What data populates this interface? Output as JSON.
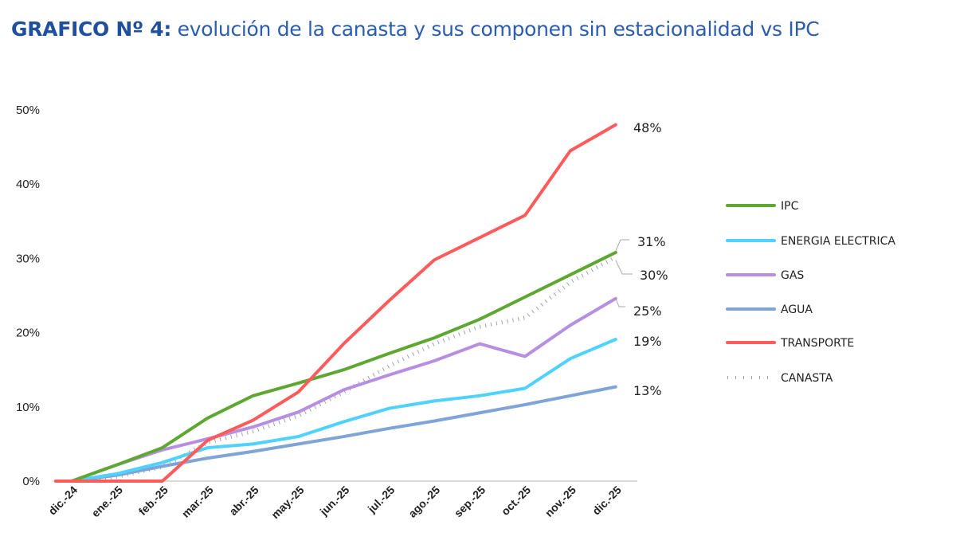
{
  "chart_data": {
    "type": "line",
    "title_bold": "GRAFICO Nº 4:",
    "title_rest": " evolución de la canasta y sus componen sin estacionalidad vs IPC",
    "xlabel": "",
    "ylabel": "",
    "ylim": [
      0,
      50
    ],
    "yticks": [
      "0%",
      "10%",
      "20%",
      "30%",
      "40%",
      "50%"
    ],
    "categories": [
      "dic.-24",
      "ene.-25",
      "feb.-25",
      "mar.-25",
      "abr.-25",
      "may.-25",
      "jun.-25",
      "jul.-25",
      "ago.-25",
      "sep.-25",
      "oct.-25",
      "nov.-25",
      "dic.-25"
    ],
    "legend_position": "right",
    "grid": false,
    "series": [
      {
        "name": "IPC",
        "color": "#5ea832",
        "style": "solid",
        "end_label": "31%",
        "values": [
          0,
          2.2,
          4.5,
          8.5,
          11.5,
          13.2,
          15.0,
          17.2,
          19.3,
          21.8,
          24.8,
          27.8,
          30.8
        ]
      },
      {
        "name": "ENERGIA ELECTRICA",
        "color": "#4fd2ff",
        "style": "solid",
        "end_label": "19%",
        "values": [
          0,
          1.0,
          2.5,
          4.5,
          5.0,
          6.0,
          8.0,
          9.8,
          10.8,
          11.5,
          12.5,
          16.5,
          19.1
        ]
      },
      {
        "name": "GAS",
        "color": "#b78fe2",
        "style": "solid",
        "end_label": "25%",
        "values": [
          0,
          2.2,
          4.2,
          5.7,
          7.3,
          9.3,
          12.3,
          14.3,
          16.2,
          18.5,
          16.8,
          21.0,
          24.6
        ]
      },
      {
        "name": "AGUA",
        "color": "#7fa4d8",
        "style": "solid",
        "end_label": "13%",
        "values": [
          0,
          0.8,
          2.0,
          3.1,
          4.0,
          5.0,
          6.0,
          7.1,
          8.1,
          9.2,
          10.3,
          11.5,
          12.7
        ]
      },
      {
        "name": "TRANSPORTE",
        "color": "#ff5b5b",
        "style": "solid",
        "end_label": "48%",
        "values": [
          0,
          0,
          0,
          5.5,
          8.2,
          12.0,
          18.5,
          24.3,
          29.8,
          32.8,
          35.8,
          44.5,
          48.0
        ]
      },
      {
        "name": "CANASTA",
        "color": "#8a94a6",
        "style": "dotted",
        "end_label": "30%",
        "values": [
          0,
          0.6,
          1.9,
          5.2,
          6.7,
          8.8,
          12.0,
          15.5,
          18.5,
          20.8,
          22.0,
          26.8,
          30.2
        ]
      }
    ]
  }
}
